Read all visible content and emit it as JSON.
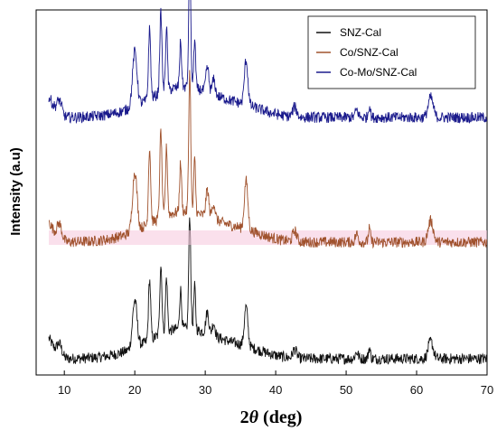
{
  "chart_data": {
    "type": "line",
    "xlabel_main": "2",
    "xlabel_theta": "θ",
    "xlabel_unit": " (deg)",
    "ylabel": "Intensity (a.u)",
    "xlim": [
      6,
      70
    ],
    "ylim": [
      0,
      100
    ],
    "xticks": [
      10,
      20,
      30,
      40,
      50,
      60,
      70
    ],
    "xtick_labels": [
      "10",
      "20",
      "30",
      "40",
      "50",
      "60",
      "70"
    ],
    "legend_position": "top-right",
    "series": [
      {
        "name": "SNZ-Cal",
        "color": "#111111"
      },
      {
        "name": "Co/SNZ-Cal",
        "color": "#a0522d"
      },
      {
        "name": "Co-Mo/SNZ-Cal",
        "color": "#1a1a8c"
      }
    ]
  }
}
